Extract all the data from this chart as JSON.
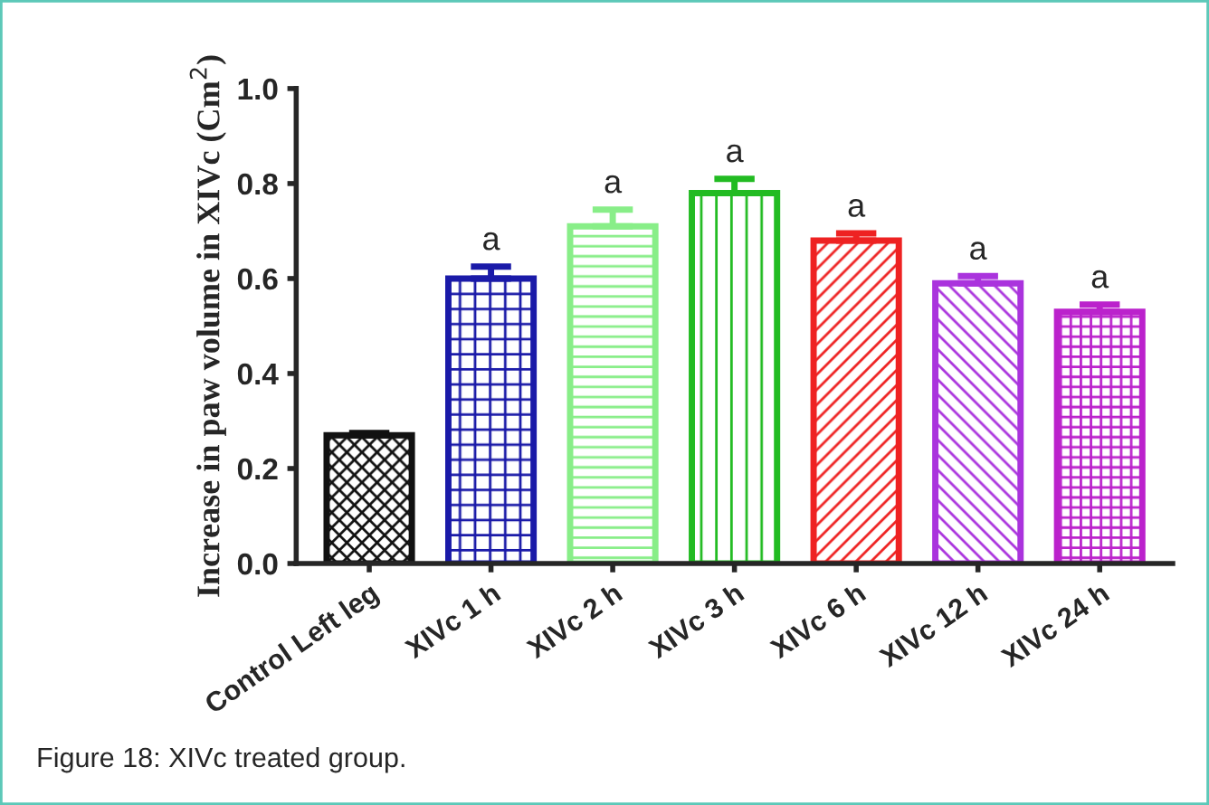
{
  "chart_data": {
    "type": "bar",
    "ylabel": "Increase in paw volume in XIVc (Cm$^{2}$)",
    "categories": [
      "Control Left leg",
      "XIVc 1 h",
      "XIVc 2 h",
      "XIVc 3 h",
      "XIVc 6 h",
      "XIVc 12 h",
      "XIVc 24 h"
    ],
    "values": [
      0.27,
      0.6,
      0.71,
      0.78,
      0.68,
      0.59,
      0.53
    ],
    "errors": [
      0.005,
      0.025,
      0.035,
      0.03,
      0.015,
      0.015,
      0.015
    ],
    "colors": [
      "#111111",
      "#1a1aa8",
      "#88ee88",
      "#22bb22",
      "#ee2222",
      "#aa33dd",
      "#bb22cc"
    ],
    "ylim": [
      0,
      1.0
    ],
    "yticks": [
      {
        "value": 0,
        "label": "0.0"
      },
      {
        "value": 0.2,
        "label": "0.2"
      },
      {
        "value": 0.4,
        "label": "0.4"
      },
      {
        "value": 0.6,
        "label": "0.6"
      },
      {
        "value": 0.8,
        "label": "0.8"
      },
      {
        "value": 1.0,
        "label": "1.0"
      }
    ],
    "grid": false,
    "annotations": [
      {
        "text": "a",
        "x": "XIVc 1 h",
        "y": 0.625
      },
      {
        "text": "a",
        "x": "XIVc 2 h",
        "y": 0.745
      },
      {
        "text": "a",
        "x": "XIVc 3 h",
        "y": 0.81
      },
      {
        "text": "a",
        "x": "XIVc 6 h",
        "y": 0.695
      },
      {
        "text": "a",
        "x": "XIVc 12 h",
        "y": 0.605
      },
      {
        "text": "a",
        "x": "XIVc 24 h",
        "y": 0.545
      },
      "Figure 18: XIVc treated group."
    ]
  }
}
